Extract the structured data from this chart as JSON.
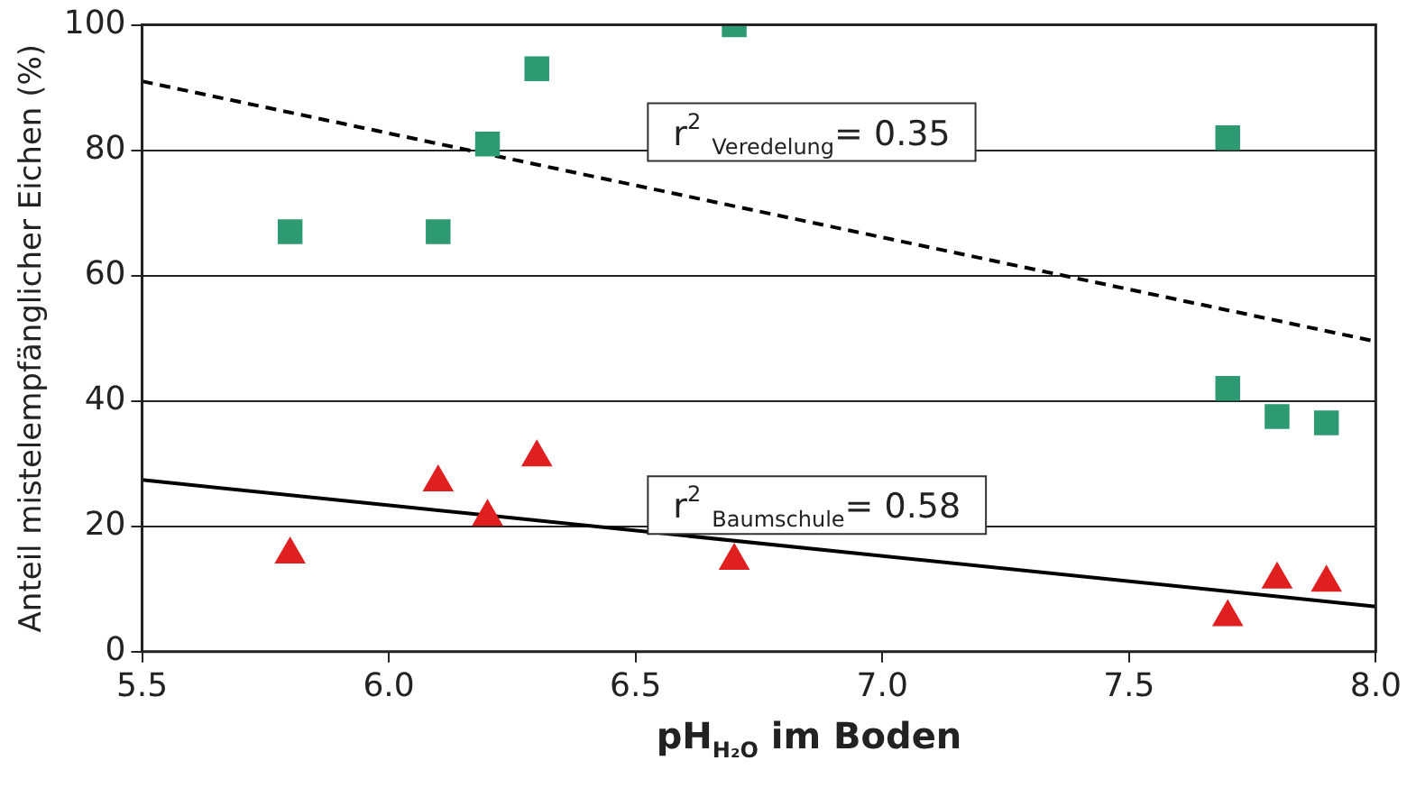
{
  "chart_data": {
    "type": "scatter",
    "xlabel": "pH$_{H₂O}$ im Boden",
    "ylabel": "Anteil mistelempfänglicher Eichen (%)",
    "series": [
      {
        "marker": "square",
        "color": "#2e9a72",
        "x": [
          5.8,
          6.1,
          6.2,
          6.3,
          6.7,
          7.7,
          7.7,
          7.8,
          7.9
        ],
        "values": [
          67,
          67,
          81,
          93,
          100,
          82,
          42,
          37.5,
          36.5
        ]
      },
      {
        "marker": "triangle",
        "color": "#e02020",
        "x": [
          5.8,
          6.1,
          6.2,
          6.3,
          6.7,
          7.7,
          7.8,
          7.9
        ],
        "values": [
          15.5,
          27,
          21.5,
          31,
          14.5,
          5.5,
          11.5,
          11
        ]
      },
      {
        "type": "line",
        "line_style": "dashed",
        "color": "#000000",
        "x": [
          5.5,
          8.0
        ],
        "values": [
          91,
          49.5
        ]
      },
      {
        "type": "line",
        "line_style": "solid",
        "color": "#000000",
        "x": [
          5.5,
          8.0
        ],
        "values": [
          27.4,
          7.2
        ]
      }
    ],
    "annotations": [
      "r$^{2}$ $_{Veredelung}$= 0.35",
      "r$^{2}$ $_{Baumschule}$= 0.58"
    ],
    "xlim": [
      5.5,
      8.0
    ],
    "xticks": [
      5.5,
      {
        "value": 6,
        "label": "6.0"
      },
      6.5,
      {
        "value": 7,
        "label": "7.0"
      },
      7.5,
      {
        "value": 8,
        "label": "8.0"
      }
    ],
    "ylim": [
      0,
      100
    ],
    "yticks": [
      0,
      20,
      40,
      60,
      80,
      100
    ],
    "grid": "y"
  }
}
